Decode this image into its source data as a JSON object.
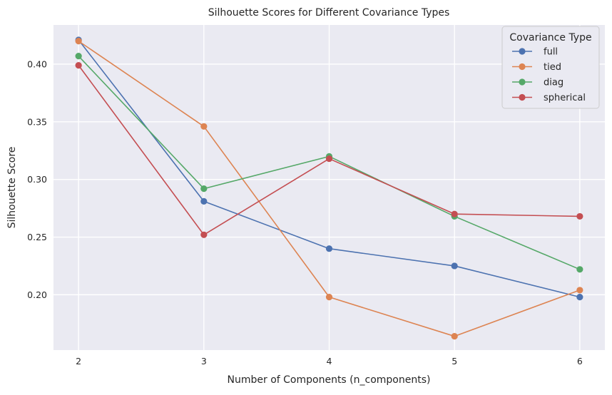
{
  "chart_data": {
    "type": "line",
    "title": "Silhouette Scores for Different Covariance Types",
    "xlabel": "Number of Components (n_components)",
    "ylabel": "Silhouette Score",
    "x": [
      2,
      3,
      4,
      5,
      6
    ],
    "x_ticks": [
      "2",
      "3",
      "4",
      "5",
      "6"
    ],
    "xlim": [
      1.8,
      6.2
    ],
    "y_ticks": [
      "0.20",
      "0.25",
      "0.30",
      "0.35",
      "0.40"
    ],
    "y_tick_values": [
      0.2,
      0.25,
      0.3,
      0.35,
      0.4
    ],
    "ylim": [
      0.152,
      0.434
    ],
    "grid": true,
    "background": "#eaeaf2",
    "legend": {
      "title": "Covariance Type",
      "placement": "top-right"
    },
    "series": [
      {
        "name": "full",
        "color": "#4c72b0",
        "values": [
          0.421,
          0.281,
          0.24,
          0.225,
          0.198
        ]
      },
      {
        "name": "tied",
        "color": "#dd8452",
        "values": [
          0.42,
          0.346,
          0.198,
          0.164,
          0.204
        ]
      },
      {
        "name": "diag",
        "color": "#55a868",
        "values": [
          0.407,
          0.292,
          0.32,
          0.268,
          0.222
        ]
      },
      {
        "name": "spherical",
        "color": "#c44e52",
        "values": [
          0.399,
          0.252,
          0.318,
          0.27,
          0.268
        ]
      }
    ]
  }
}
